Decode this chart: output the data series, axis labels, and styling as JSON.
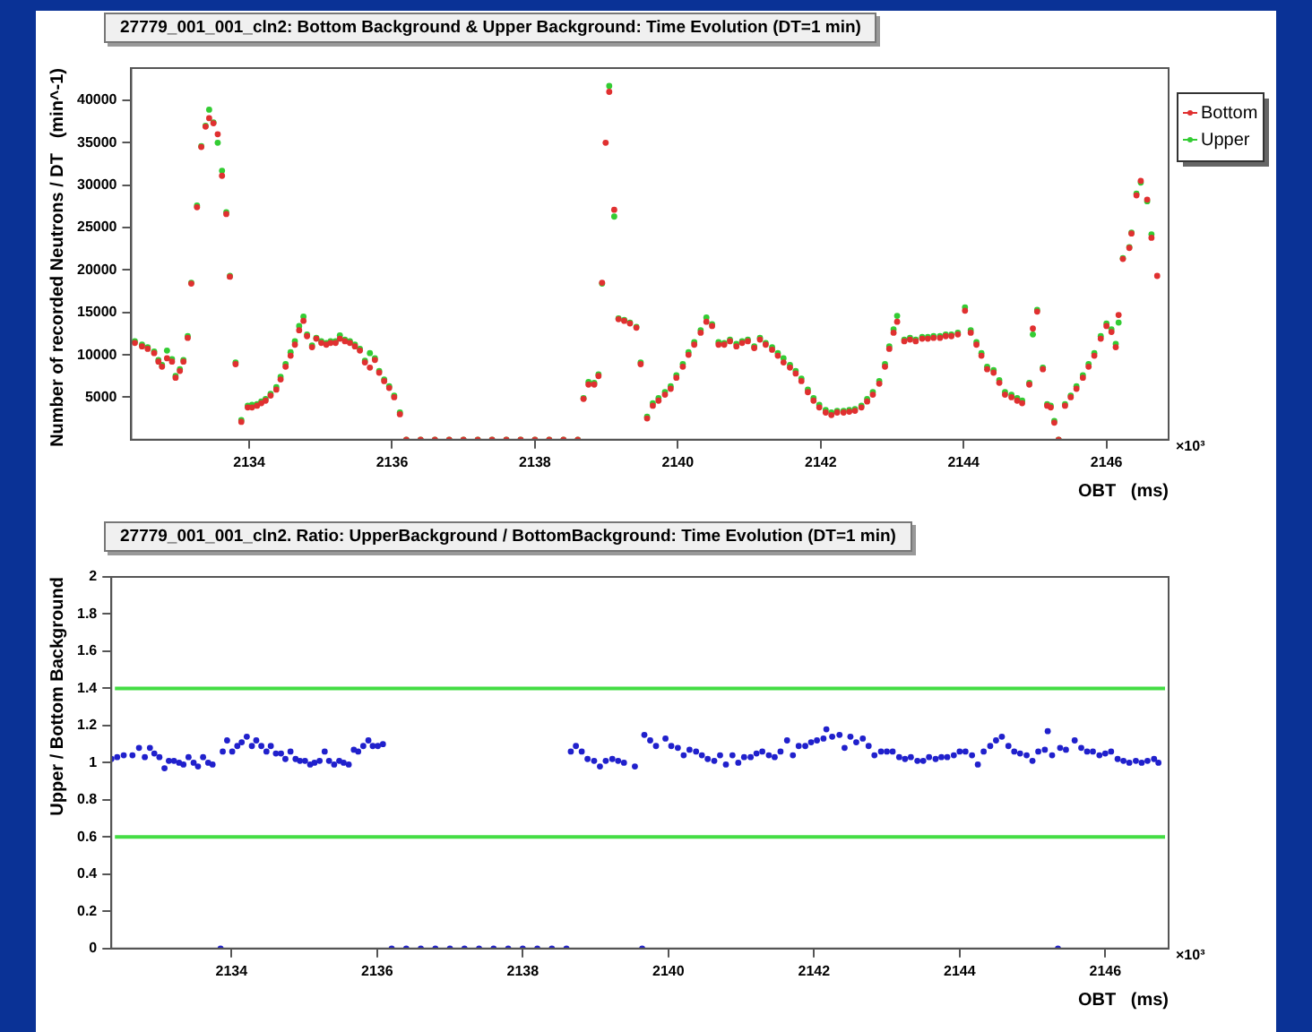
{
  "chart_data": [
    {
      "type": "scatter",
      "title": "27779_001_001_cln2:  Bottom Background & Upper Background: Time Evolution (DT=1 min)",
      "xlabel": "OBT   (ms)",
      "ylabel": "Number of recorded Neutrons / DT   (min^-1)",
      "annotations": [
        "×10³"
      ],
      "xlim": [
        2132.35,
        2146.87
      ],
      "xticks": [
        2134,
        2136,
        2138,
        2140,
        2142,
        2144,
        2146
      ],
      "ylim": [
        0,
        43800
      ],
      "yticks": [
        5000,
        10000,
        15000,
        20000,
        25000,
        30000,
        35000,
        40000
      ],
      "grid": false,
      "marker": "circle",
      "legend": "top right",
      "series": [
        {
          "name": "Bottom",
          "color": "#e03030",
          "x": [
            2132.4,
            2132.5,
            2132.58,
            2132.67,
            2132.73,
            2132.78,
            2132.85,
            2132.92,
            2132.97,
            2133.03,
            2133.08,
            2133.14,
            2133.19,
            2133.27,
            2133.33,
            2133.39,
            2133.44,
            2133.5,
            2133.56,
            2133.62,
            2133.68,
            2133.73,
            2133.81,
            2133.89,
            2133.98,
            2134.04,
            2134.11,
            2134.17,
            2134.23,
            2134.3,
            2134.38,
            2134.44,
            2134.51,
            2134.58,
            2134.64,
            2134.7,
            2134.76,
            2134.81,
            2134.88,
            2134.94,
            2135.01,
            2135.08,
            2135.14,
            2135.21,
            2135.27,
            2135.34,
            2135.41,
            2135.48,
            2135.55,
            2135.62,
            2135.69,
            2135.76,
            2135.82,
            2135.89,
            2135.96,
            2136.03,
            2136.11,
            2136.2,
            2136.4,
            2136.6,
            2136.8,
            2137,
            2137.2,
            2137.4,
            2137.6,
            2137.8,
            2138,
            2138.2,
            2138.4,
            2138.6,
            2138.68,
            2138.75,
            2138.83,
            2138.89,
            2138.94,
            2138.99,
            2139.04,
            2139.11,
            2139.17,
            2139.25,
            2139.33,
            2139.42,
            2139.48,
            2139.57,
            2139.65,
            2139.73,
            2139.82,
            2139.9,
            2139.98,
            2140.07,
            2140.15,
            2140.23,
            2140.32,
            2140.4,
            2140.48,
            2140.57,
            2140.65,
            2140.73,
            2140.82,
            2140.9,
            2140.98,
            2141.07,
            2141.15,
            2141.23,
            2141.32,
            2141.4,
            2141.48,
            2141.57,
            2141.65,
            2141.73,
            2141.82,
            2141.9,
            2141.98,
            2142.07,
            2142.15,
            2142.23,
            2142.32,
            2142.4,
            2142.48,
            2142.57,
            2142.65,
            2142.73,
            2142.82,
            2142.9,
            2142.96,
            2143.02,
            2143.07,
            2143.17,
            2143.25,
            2143.33,
            2143.42,
            2143.5,
            2143.58,
            2143.67,
            2143.75,
            2143.83,
            2143.92,
            2144.02,
            2144.1,
            2144.18,
            2144.25,
            2144.33,
            2144.42,
            2144.5,
            2144.58,
            2144.67,
            2144.75,
            2144.82,
            2144.92,
            2144.97,
            2145.03,
            2145.11,
            2145.17,
            2145.22,
            2145.27,
            2145.33,
            2145.42,
            2145.5,
            2145.58,
            2145.67,
            2145.75,
            2145.83,
            2145.92,
            2146,
            2146.07,
            2146.13,
            2146.17,
            2146.23,
            2146.32,
            2146.35,
            2146.42,
            2146.48,
            2146.57,
            2146.63,
            2146.71
          ],
          "values": [
            11400,
            11000,
            10700,
            10200,
            9200,
            8600,
            9600,
            9200,
            7300,
            8100,
            9200,
            12000,
            18400,
            27400,
            34500,
            36900,
            37900,
            37300,
            36000,
            31100,
            26600,
            19200,
            8900,
            2100,
            3800,
            3800,
            4000,
            4300,
            4600,
            5200,
            5900,
            7100,
            8600,
            9900,
            11200,
            12900,
            14000,
            12200,
            10900,
            11900,
            11400,
            11200,
            11400,
            11400,
            11900,
            11600,
            11400,
            11000,
            10500,
            9100,
            8500,
            9400,
            7900,
            6900,
            6100,
            5000,
            3000,
            0,
            0,
            0,
            0,
            0,
            0,
            0,
            0,
            0,
            0,
            0,
            0,
            0,
            4800,
            6500,
            6500,
            7500,
            18500,
            35000,
            41000,
            27100,
            14200,
            14000,
            13700,
            13200,
            8900,
            2500,
            4000,
            4600,
            5300,
            6000,
            7300,
            8600,
            10000,
            11200,
            12600,
            13900,
            13400,
            11200,
            11200,
            11600,
            11000,
            11400,
            11600,
            10800,
            11800,
            11200,
            10600,
            9900,
            9100,
            8500,
            7800,
            6900,
            5600,
            4600,
            3800,
            3200,
            2900,
            3200,
            3200,
            3300,
            3400,
            3800,
            4500,
            5300,
            6600,
            8600,
            10700,
            12600,
            13900,
            11600,
            11800,
            11600,
            11900,
            11900,
            12000,
            12000,
            12200,
            12200,
            12400,
            15200,
            12600,
            11200,
            9900,
            8300,
            7900,
            6700,
            5300,
            5000,
            4600,
            4300,
            6500,
            13100,
            15100,
            8300,
            4000,
            3800,
            2000,
            0,
            4000,
            5000,
            6000,
            7300,
            8600,
            9900,
            11900,
            13400,
            12700,
            10900,
            14700,
            21300,
            22600,
            24300,
            28800,
            30500,
            28300,
            23800,
            19300
          ]
        },
        {
          "name": "Upper",
          "color": "#33cc33",
          "x": [
            2132.4,
            2132.5,
            2132.58,
            2132.67,
            2132.73,
            2132.78,
            2132.85,
            2132.92,
            2132.97,
            2133.03,
            2133.08,
            2133.14,
            2133.19,
            2133.27,
            2133.33,
            2133.39,
            2133.44,
            2133.5,
            2133.56,
            2133.62,
            2133.68,
            2133.73,
            2133.81,
            2133.89,
            2133.98,
            2134.04,
            2134.11,
            2134.17,
            2134.23,
            2134.3,
            2134.38,
            2134.44,
            2134.51,
            2134.58,
            2134.64,
            2134.7,
            2134.76,
            2134.81,
            2134.88,
            2134.94,
            2135.01,
            2135.08,
            2135.14,
            2135.21,
            2135.27,
            2135.34,
            2135.41,
            2135.48,
            2135.55,
            2135.62,
            2135.69,
            2135.76,
            2135.82,
            2135.89,
            2135.96,
            2136.03,
            2136.11,
            2136.2,
            2136.4,
            2136.6,
            2136.8,
            2137,
            2137.2,
            2137.4,
            2137.6,
            2137.8,
            2138,
            2138.2,
            2138.4,
            2138.6,
            2138.68,
            2138.75,
            2138.83,
            2138.89,
            2138.94,
            2138.99,
            2139.04,
            2139.11,
            2139.17,
            2139.25,
            2139.33,
            2139.42,
            2139.48,
            2139.57,
            2139.65,
            2139.73,
            2139.82,
            2139.9,
            2139.98,
            2140.07,
            2140.15,
            2140.23,
            2140.32,
            2140.4,
            2140.48,
            2140.57,
            2140.65,
            2140.73,
            2140.82,
            2140.9,
            2140.98,
            2141.07,
            2141.15,
            2141.23,
            2141.32,
            2141.4,
            2141.48,
            2141.57,
            2141.65,
            2141.73,
            2141.82,
            2141.9,
            2141.98,
            2142.07,
            2142.15,
            2142.23,
            2142.32,
            2142.4,
            2142.48,
            2142.57,
            2142.65,
            2142.73,
            2142.82,
            2142.9,
            2142.96,
            2143.02,
            2143.07,
            2143.17,
            2143.25,
            2143.33,
            2143.42,
            2143.5,
            2143.58,
            2143.67,
            2143.75,
            2143.83,
            2143.92,
            2144.02,
            2144.1,
            2144.18,
            2144.25,
            2144.33,
            2144.42,
            2144.5,
            2144.58,
            2144.67,
            2144.75,
            2144.82,
            2144.92,
            2144.97,
            2145.03,
            2145.11,
            2145.17,
            2145.22,
            2145.27,
            2145.33,
            2145.42,
            2145.5,
            2145.58,
            2145.67,
            2145.75,
            2145.83,
            2145.92,
            2146,
            2146.07,
            2146.13,
            2146.17,
            2146.23,
            2146.32,
            2146.35,
            2146.42,
            2146.48,
            2146.57,
            2146.63
          ],
          "values": [
            11600,
            11200,
            10900,
            10400,
            9400,
            8800,
            10500,
            9500,
            7500,
            8300,
            9400,
            12200,
            18500,
            27600,
            34600,
            37000,
            38900,
            37400,
            35000,
            31700,
            26800,
            19300,
            9100,
            2300,
            4000,
            4100,
            4200,
            4500,
            4800,
            5400,
            6200,
            7400,
            8900,
            10300,
            11600,
            13400,
            14500,
            12400,
            11100,
            12000,
            11600,
            11400,
            11600,
            11600,
            12300,
            11800,
            11600,
            11200,
            10700,
            9300,
            10200,
            9600,
            8100,
            7100,
            6300,
            5200,
            3200,
            0,
            0,
            0,
            0,
            0,
            0,
            0,
            0,
            0,
            0,
            0,
            0,
            0,
            4900,
            6800,
            6700,
            7700,
            18400,
            null,
            41700,
            26300,
            14300,
            14100,
            13800,
            13300,
            9100,
            2700,
            4300,
            4900,
            5600,
            6300,
            7600,
            8900,
            10300,
            11500,
            12900,
            14400,
            13600,
            11500,
            11400,
            11800,
            11300,
            11600,
            11800,
            11000,
            12000,
            11400,
            10900,
            10200,
            9600,
            8800,
            8100,
            7200,
            5900,
            4900,
            4100,
            3500,
            3200,
            3400,
            3400,
            3500,
            3600,
            4000,
            4800,
            5600,
            6900,
            8900,
            11000,
            13000,
            14600,
            11800,
            12000,
            11800,
            12100,
            12100,
            12200,
            12200,
            12400,
            12400,
            12600,
            15600,
            12900,
            11500,
            10200,
            8600,
            8200,
            7000,
            5600,
            5300,
            4900,
            4600,
            6700,
            12400,
            15300,
            8500,
            4200,
            4000,
            2200,
            0,
            4200,
            5200,
            6300,
            7600,
            8900,
            10200,
            12200,
            13700,
            13000,
            11300,
            13800,
            21400,
            22700,
            24400,
            29000,
            30300,
            28100,
            24200
          ]
        }
      ]
    },
    {
      "type": "scatter",
      "title": "27779_001_001_cln2. Ratio: UpperBackground / BottomBackground: Time Evolution (DT=1 min)",
      "xlabel": "OBT   (ms)",
      "ylabel": "Upper / Bottom Background",
      "annotations": [
        "×10³"
      ],
      "xlim": [
        2132.35,
        2146.87
      ],
      "xticks": [
        2134,
        2136,
        2138,
        2140,
        2142,
        2144,
        2146
      ],
      "ylim": [
        0,
        2
      ],
      "yticks": [
        0,
        0.2,
        0.4,
        0.6,
        0.8,
        1,
        1.2,
        1.4,
        1.6,
        1.8,
        2
      ],
      "grid": false,
      "marker": "circle",
      "ref_lines": [
        {
          "axis": "y",
          "value": 1.4,
          "color": "#44dd44"
        },
        {
          "axis": "y",
          "value": 0.6,
          "color": "#44dd44"
        }
      ],
      "series": [
        {
          "color": "#2020cc",
          "x": [
            2132.35,
            2132.43,
            2132.52,
            2132.64,
            2132.73,
            2132.81,
            2132.88,
            2132.94,
            2133.01,
            2133.08,
            2133.14,
            2133.21,
            2133.28,
            2133.34,
            2133.41,
            2133.48,
            2133.54,
            2133.61,
            2133.68,
            2133.74,
            2133.85,
            2133.88,
            2133.94,
            2134.01,
            2134.08,
            2134.14,
            2134.21,
            2134.28,
            2134.34,
            2134.41,
            2134.48,
            2134.54,
            2134.61,
            2134.68,
            2134.74,
            2134.81,
            2134.88,
            2134.94,
            2135.01,
            2135.08,
            2135.14,
            2135.21,
            2135.28,
            2135.34,
            2135.41,
            2135.48,
            2135.54,
            2135.61,
            2135.68,
            2135.74,
            2135.81,
            2135.88,
            2135.94,
            2136.01,
            2136.08,
            2136.2,
            2136.4,
            2136.6,
            2136.8,
            2137,
            2137.2,
            2137.4,
            2137.6,
            2137.8,
            2138,
            2138.2,
            2138.4,
            2138.6,
            2138.66,
            2138.73,
            2138.81,
            2138.89,
            2138.98,
            2139.06,
            2139.14,
            2139.23,
            2139.31,
            2139.39,
            2139.54,
            2139.64,
            2139.67,
            2139.75,
            2139.83,
            2139.96,
            2140.04,
            2140.13,
            2140.21,
            2140.29,
            2140.38,
            2140.46,
            2140.54,
            2140.63,
            2140.71,
            2140.79,
            2140.88,
            2140.96,
            2141.04,
            2141.13,
            2141.21,
            2141.29,
            2141.38,
            2141.46,
            2141.54,
            2141.63,
            2141.71,
            2141.79,
            2141.88,
            2141.96,
            2142.04,
            2142.13,
            2142.17,
            2142.25,
            2142.35,
            2142.42,
            2142.5,
            2142.58,
            2142.67,
            2142.75,
            2142.83,
            2142.92,
            2143,
            2143.08,
            2143.17,
            2143.25,
            2143.33,
            2143.42,
            2143.5,
            2143.58,
            2143.67,
            2143.75,
            2143.83,
            2143.92,
            2144,
            2144.08,
            2144.17,
            2144.25,
            2144.33,
            2144.42,
            2144.5,
            2144.58,
            2144.67,
            2144.75,
            2144.83,
            2144.92,
            2145,
            2145.08,
            2145.17,
            2145.21,
            2145.27,
            2145.35,
            2145.38,
            2145.46,
            2145.58,
            2145.67,
            2145.75,
            2145.83,
            2145.92,
            2146,
            2146.08,
            2146.17,
            2146.25,
            2146.33,
            2146.42,
            2146.5,
            2146.58,
            2146.67,
            2146.73
          ],
          "values": [
            1.02,
            1.03,
            1.04,
            1.04,
            1.08,
            1.03,
            1.08,
            1.05,
            1.03,
            0.97,
            1.01,
            1.01,
            1.0,
            0.99,
            1.03,
            1.0,
            0.98,
            1.03,
            1.0,
            0.99,
            0,
            1.06,
            1.12,
            1.06,
            1.09,
            1.11,
            1.14,
            1.09,
            1.12,
            1.09,
            1.06,
            1.09,
            1.05,
            1.05,
            1.02,
            1.06,
            1.02,
            1.01,
            1.01,
            0.99,
            1.0,
            1.01,
            1.06,
            1.01,
            0.99,
            1.01,
            1.0,
            0.99,
            1.07,
            1.06,
            1.09,
            1.12,
            1.09,
            1.09,
            1.1,
            0,
            0,
            0,
            0,
            0,
            0,
            0,
            0,
            0,
            0,
            0,
            0,
            0,
            1.06,
            1.09,
            1.06,
            1.02,
            1.01,
            0.98,
            1.01,
            1.02,
            1.01,
            1.0,
            0.98,
            0,
            1.15,
            1.12,
            1.09,
            1.13,
            1.09,
            1.08,
            1.04,
            1.07,
            1.06,
            1.04,
            1.02,
            1.01,
            1.04,
            0.99,
            1.04,
            1.0,
            1.03,
            1.03,
            1.05,
            1.06,
            1.04,
            1.03,
            1.06,
            1.12,
            1.04,
            1.09,
            1.09,
            1.11,
            1.12,
            1.13,
            1.18,
            1.14,
            1.15,
            1.08,
            1.14,
            1.11,
            1.13,
            1.09,
            1.04,
            1.06,
            1.06,
            1.06,
            1.03,
            1.02,
            1.03,
            1.01,
            1.01,
            1.03,
            1.02,
            1.03,
            1.03,
            1.04,
            1.06,
            1.06,
            1.04,
            0.99,
            1.06,
            1.09,
            1.12,
            1.14,
            1.09,
            1.06,
            1.05,
            1.04,
            1.01,
            1.06,
            1.07,
            1.17,
            1.04,
            0,
            1.08,
            1.07,
            1.12,
            1.08,
            1.06,
            1.06,
            1.04,
            1.05,
            1.06,
            1.02,
            1.01,
            1.0,
            1.01,
            1.0,
            1.01,
            1.02,
            1.0
          ]
        }
      ]
    }
  ]
}
